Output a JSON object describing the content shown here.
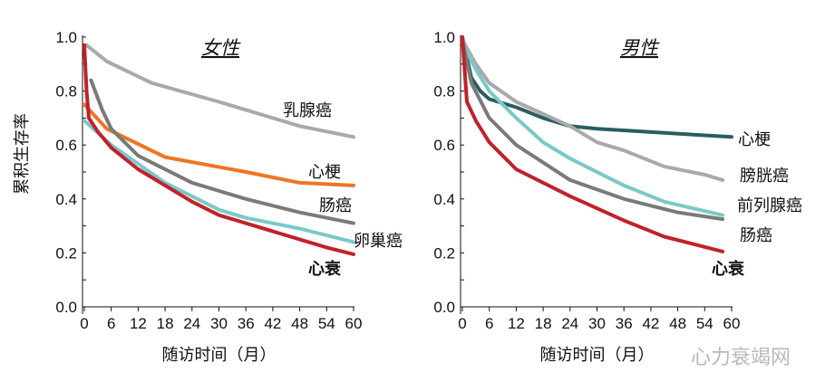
{
  "watermark": "心力衰竭网",
  "chart_data": [
    {
      "type": "line",
      "title": "女性",
      "xlabel": "随访时间（月）",
      "ylabel": "累积生存率",
      "xlim": [
        0,
        60
      ],
      "ylim": [
        0,
        1.0
      ],
      "xticks": [
        "0",
        "6",
        "12",
        "18",
        "24",
        "30",
        "36",
        "42",
        "48",
        "54",
        "60"
      ],
      "yticks": [
        "0.0",
        "0.2",
        "0.4",
        "0.6",
        "0.8",
        "1.0"
      ],
      "grid": false,
      "series": [
        {
          "name": "乳腺癌",
          "color": "#a9a9a9",
          "bold": false,
          "points": [
            [
              0.5,
              0.97
            ],
            [
              5,
              0.91
            ],
            [
              15,
              0.83
            ],
            [
              30,
              0.76
            ],
            [
              48,
              0.67
            ],
            [
              60,
              0.63
            ]
          ]
        },
        {
          "name": "心梗",
          "color": "#f07522",
          "bold": false,
          "points": [
            [
              0,
              0.75
            ],
            [
              5,
              0.66
            ],
            [
              18,
              0.555
            ],
            [
              36,
              0.5
            ],
            [
              48,
              0.46
            ],
            [
              60,
              0.45
            ]
          ]
        },
        {
          "name": "肠癌",
          "color": "#7a7a7a",
          "bold": false,
          "points": [
            [
              1.5,
              0.84
            ],
            [
              4,
              0.73
            ],
            [
              6,
              0.66
            ],
            [
              12,
              0.56
            ],
            [
              24,
              0.46
            ],
            [
              36,
              0.4
            ],
            [
              48,
              0.35
            ],
            [
              60,
              0.31
            ]
          ]
        },
        {
          "name": "卵巢癌",
          "color": "#7cc8c8",
          "bold": false,
          "points": [
            [
              0,
              0.69
            ],
            [
              6,
              0.6
            ],
            [
              18,
              0.46
            ],
            [
              30,
              0.36
            ],
            [
              36,
              0.33
            ],
            [
              48,
              0.29
            ],
            [
              60,
              0.24
            ]
          ]
        },
        {
          "name": "心衰",
          "color": "#c0222a",
          "bold": true,
          "points": [
            [
              0,
              0.97
            ],
            [
              0.5,
              0.8
            ],
            [
              1,
              0.7
            ],
            [
              3,
              0.65
            ],
            [
              6,
              0.59
            ],
            [
              12,
              0.51
            ],
            [
              18,
              0.45
            ],
            [
              24,
              0.39
            ],
            [
              30,
              0.34
            ],
            [
              42,
              0.28
            ],
            [
              54,
              0.22
            ],
            [
              60,
              0.195
            ]
          ]
        }
      ]
    },
    {
      "type": "line",
      "title": "男性",
      "xlabel": "随访时间（月）",
      "xlim": [
        0,
        60
      ],
      "ylim": [
        0,
        1.0
      ],
      "xticks": [
        "0",
        "6",
        "12",
        "18",
        "24",
        "30",
        "36",
        "42",
        "48",
        "54",
        "60"
      ],
      "yticks": [
        "0.0",
        "0.2",
        "0.4",
        "0.6",
        "0.8",
        "1.0"
      ],
      "grid": false,
      "series": [
        {
          "name": "心梗",
          "color": "#2a5e5e",
          "bold": false,
          "points": [
            [
              0,
              1.0
            ],
            [
              2,
              0.85
            ],
            [
              4,
              0.8
            ],
            [
              6,
              0.77
            ],
            [
              12,
              0.74
            ],
            [
              18,
              0.7
            ],
            [
              24,
              0.67
            ],
            [
              30,
              0.66
            ],
            [
              60,
              0.63
            ]
          ]
        },
        {
          "name": "膀胱癌",
          "color": "#a9a9a9",
          "bold": false,
          "points": [
            [
              0,
              0.99
            ],
            [
              3,
              0.9
            ],
            [
              6,
              0.83
            ],
            [
              12,
              0.76
            ],
            [
              24,
              0.67
            ],
            [
              30,
              0.61
            ],
            [
              36,
              0.58
            ],
            [
              45,
              0.52
            ],
            [
              54,
              0.49
            ],
            [
              58,
              0.47
            ]
          ]
        },
        {
          "name": "前列腺癌",
          "color": "#7cc8c8",
          "bold": false,
          "points": [
            [
              0,
              0.98
            ],
            [
              3,
              0.88
            ],
            [
              6,
              0.8
            ],
            [
              12,
              0.7
            ],
            [
              18,
              0.61
            ],
            [
              24,
              0.55
            ],
            [
              36,
              0.45
            ],
            [
              45,
              0.39
            ],
            [
              58,
              0.34
            ]
          ]
        },
        {
          "name": "肠癌",
          "color": "#7a7a7a",
          "bold": false,
          "points": [
            [
              0,
              0.99
            ],
            [
              2,
              0.83
            ],
            [
              6,
              0.7
            ],
            [
              12,
              0.6
            ],
            [
              24,
              0.47
            ],
            [
              36,
              0.4
            ],
            [
              48,
              0.35
            ],
            [
              58,
              0.325
            ]
          ]
        },
        {
          "name": "心衰",
          "color": "#c0222a",
          "bold": true,
          "points": [
            [
              0,
              1.0
            ],
            [
              1,
              0.76
            ],
            [
              3,
              0.69
            ],
            [
              6,
              0.61
            ],
            [
              12,
              0.51
            ],
            [
              24,
              0.41
            ],
            [
              36,
              0.32
            ],
            [
              45,
              0.26
            ],
            [
              58,
              0.205
            ]
          ]
        }
      ]
    }
  ]
}
